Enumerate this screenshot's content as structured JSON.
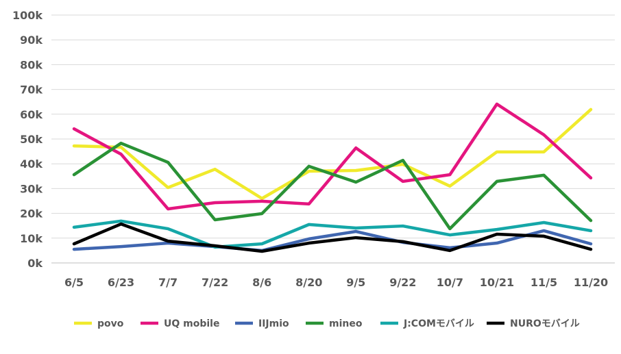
{
  "chart_data": {
    "type": "line",
    "title": "",
    "xlabel": "",
    "ylabel": "",
    "ylim": [
      0,
      100000
    ],
    "grid": true,
    "legend_position": "bottom",
    "y_ticks": [
      "0k",
      "10k",
      "20k",
      "30k",
      "40k",
      "50k",
      "60k",
      "70k",
      "80k",
      "90k",
      "100k"
    ],
    "categories": [
      "6/5",
      "6/23",
      "7/7",
      "7/22",
      "8/6",
      "8/20",
      "9/5",
      "9/22",
      "10/7",
      "10/21",
      "11/5",
      "11/20"
    ],
    "series": [
      {
        "name": "povo",
        "color": "#f0ea2c",
        "values": [
          47200,
          46700,
          30400,
          37800,
          26000,
          37000,
          37300,
          39800,
          31000,
          44800,
          44800,
          61900
        ]
      },
      {
        "name": "UQ mobile",
        "color": "#e4157f",
        "values": [
          54100,
          43900,
          21800,
          24300,
          24900,
          23800,
          46400,
          32900,
          35600,
          64100,
          51700,
          34300
        ]
      },
      {
        "name": "IIJmio",
        "color": "#4066b0",
        "values": [
          5500,
          6600,
          8000,
          6600,
          5000,
          9700,
          12700,
          8300,
          6100,
          8000,
          13000,
          7700
        ]
      },
      {
        "name": "mineo",
        "color": "#2a9236",
        "values": [
          35600,
          48300,
          40600,
          17400,
          19900,
          39000,
          32600,
          41400,
          13800,
          32900,
          35400,
          17100
        ]
      },
      {
        "name": "J:COMモバイル",
        "color": "#15a7a8",
        "values": [
          14400,
          16900,
          13800,
          6400,
          7700,
          15500,
          14100,
          14900,
          11300,
          13500,
          16300,
          13000
        ]
      },
      {
        "name": "NUROモバイル",
        "color": "#000000",
        "values": [
          7700,
          15700,
          8800,
          6900,
          4700,
          8000,
          10200,
          8600,
          5000,
          11600,
          10800,
          5500
        ]
      }
    ]
  }
}
